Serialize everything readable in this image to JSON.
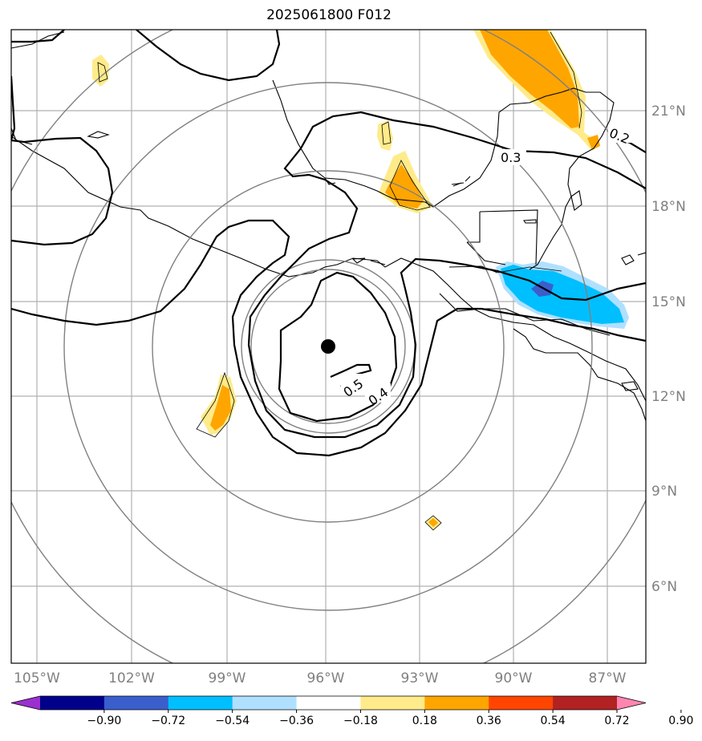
{
  "title": "2025061800 F012",
  "lon_labels": [
    "105°W",
    "102°W",
    "99°W",
    "96°W",
    "93°W",
    "90°W",
    "87°W"
  ],
  "lat_labels": [
    "21°N",
    "18°N",
    "15°N",
    "12°N",
    "9°N",
    "6°N"
  ],
  "contour_labels": [
    "0.2",
    "0.3",
    "0.4",
    "0.5"
  ],
  "colorbar": {
    "ticks": [
      "−0.90",
      "−0.72",
      "−0.54",
      "−0.36",
      "−0.18",
      "0.18",
      "0.36",
      "0.54",
      "0.72",
      "0.90"
    ],
    "colors": [
      "#9b30d0",
      "#00008b",
      "#3a5fcd",
      "#00bfff",
      "#b0e0ff",
      "#ffffff",
      "#ffeb8a",
      "#ffa500",
      "#ff4500",
      "#b22222",
      "#ff85b0"
    ]
  },
  "storm_center": {
    "lon": -95.9,
    "lat": 13.5
  }
}
